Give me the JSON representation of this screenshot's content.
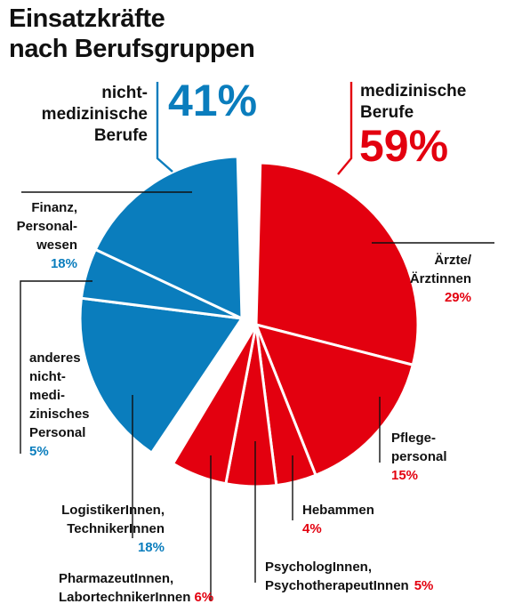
{
  "title": [
    "Einsatzkräfte",
    "nach Berufsgruppen"
  ],
  "colors": {
    "medical": "#e3000f",
    "nonmedical": "#0a7dbd",
    "text": "#111111"
  },
  "chart_data": {
    "type": "pie",
    "title": "Einsatzkräfte nach Berufsgruppen",
    "groups": [
      {
        "key": "non",
        "label": [
          "nicht-",
          "medizinische",
          "Berufe"
        ],
        "value": 41,
        "value_text": "41%"
      },
      {
        "key": "med",
        "label": [
          "medizinische",
          "Berufe"
        ],
        "value": 59,
        "value_text": "59%"
      }
    ],
    "slices": [
      {
        "group": "med",
        "label": [
          "Ärzte/",
          "Ärztinnen"
        ],
        "value": 29,
        "value_text": "29%"
      },
      {
        "group": "med",
        "label": [
          "Pflege-",
          "personal"
        ],
        "value": 15,
        "value_text": "15%"
      },
      {
        "group": "med",
        "label": [
          "Hebammen"
        ],
        "value": 4,
        "value_text": "4%"
      },
      {
        "group": "med",
        "label": [
          "PsychologInnen,",
          "PsychotherapeutInnen"
        ],
        "value": 5,
        "value_text": "5%"
      },
      {
        "group": "med",
        "label": [
          "PharmazeutInnen,",
          "LabortechnikerInnen"
        ],
        "value": 6,
        "value_text": "6%"
      },
      {
        "group": "non",
        "label": [
          "LogistikerInnen,",
          "TechnikerInnen"
        ],
        "value": 18,
        "value_text": "18%"
      },
      {
        "group": "non",
        "label": [
          "anderes",
          "nicht-",
          "medi-",
          "zinisches",
          "Personal"
        ],
        "value": 5,
        "value_text": "5%"
      },
      {
        "group": "non",
        "label": [
          "Finanz,",
          "Personal-",
          "wesen"
        ],
        "value": 18,
        "value_text": "18%"
      }
    ]
  }
}
